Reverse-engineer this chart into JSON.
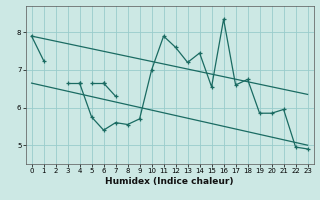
{
  "title": "",
  "xlabel": "Humidex (Indice chaleur)",
  "bg_color": "#cce8e4",
  "line_color": "#1a6b62",
  "grid_color": "#99cccc",
  "xlim": [
    -0.5,
    23.5
  ],
  "ylim": [
    4.5,
    8.7
  ],
  "yticks": [
    5,
    6,
    7,
    8
  ],
  "xticks": [
    0,
    1,
    2,
    3,
    4,
    5,
    6,
    7,
    8,
    9,
    10,
    11,
    12,
    13,
    14,
    15,
    16,
    17,
    18,
    19,
    20,
    21,
    22,
    23
  ],
  "series": [
    {
      "x": [
        0,
        1
      ],
      "y": [
        7.9,
        7.25
      ]
    },
    {
      "x": [
        3,
        4
      ],
      "y": [
        6.65,
        6.65
      ]
    },
    {
      "x": [
        4,
        5,
        6,
        7,
        8,
        9,
        10,
        11,
        12,
        13,
        14,
        15,
        16,
        17,
        18,
        19,
        20,
        21,
        22,
        23
      ],
      "y": [
        6.65,
        5.75,
        5.4,
        5.6,
        5.55,
        5.7,
        7.0,
        7.9,
        7.6,
        7.2,
        7.45,
        6.55,
        8.35,
        6.6,
        6.75,
        5.85,
        5.85,
        5.95,
        4.95,
        4.9
      ]
    },
    {
      "x": [
        5,
        6
      ],
      "y": [
        6.65,
        6.65
      ]
    },
    {
      "x": [
        6,
        7
      ],
      "y": [
        6.65,
        6.3
      ]
    }
  ],
  "regression_lines": [
    {
      "x": [
        0,
        23
      ],
      "y": [
        7.9,
        6.35
      ]
    },
    {
      "x": [
        0,
        23
      ],
      "y": [
        6.65,
        5.0
      ]
    }
  ]
}
